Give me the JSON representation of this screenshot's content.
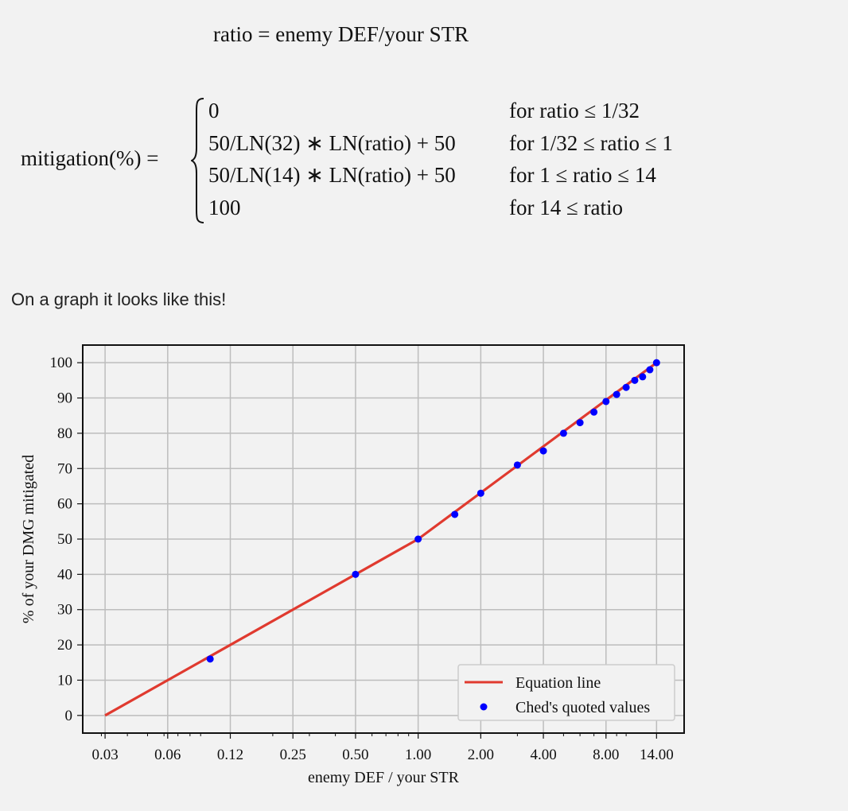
{
  "equations": {
    "ratio": "ratio = enemy DEF/your STR",
    "mitigation_lhs": "mitigation(%) =",
    "cases": [
      {
        "expr": "0",
        "cond": "for ratio ≤ 1/32"
      },
      {
        "expr": "50/LN(32) ∗ LN(ratio) + 50",
        "cond": "for 1/32 ≤ ratio ≤ 1"
      },
      {
        "expr": "50/LN(14) ∗ LN(ratio) + 50",
        "cond": "for 1 ≤ ratio ≤ 14"
      },
      {
        "expr": "100",
        "cond": "for 14 ≤ ratio"
      }
    ]
  },
  "graph_caption": "On a graph it looks like this!",
  "chart_data": {
    "type": "line",
    "xlabel": "enemy DEF / your STR",
    "ylabel": "% of your DMG mitigated",
    "x_scale": "log",
    "xlim": [
      0.0244,
      19.0
    ],
    "ylim": [
      -5,
      105
    ],
    "grid": true,
    "legend_position": "bottom-right",
    "x_ticks": [
      {
        "value": 0.03125,
        "label": "0.03"
      },
      {
        "value": 0.0625,
        "label": "0.06"
      },
      {
        "value": 0.125,
        "label": "0.12"
      },
      {
        "value": 0.25,
        "label": "0.25"
      },
      {
        "value": 0.5,
        "label": "0.50"
      },
      {
        "value": 1,
        "label": "1.00"
      },
      {
        "value": 2,
        "label": "2.00"
      },
      {
        "value": 4,
        "label": "4.00"
      },
      {
        "value": 8,
        "label": "8.00"
      },
      {
        "value": 14,
        "label": "14.00"
      }
    ],
    "y_ticks": [
      0,
      10,
      20,
      30,
      40,
      50,
      60,
      70,
      80,
      90,
      100
    ],
    "series": [
      {
        "name": "Equation line",
        "kind": "line",
        "color": "#e03a2f",
        "x": [
          0.03125,
          1,
          14
        ],
        "y": [
          0,
          50,
          100
        ]
      },
      {
        "name": "Ched's quoted values",
        "kind": "scatter",
        "color": "#0000ff",
        "x": [
          0.1,
          0.5,
          1,
          1.5,
          2,
          3,
          4,
          5,
          6,
          7,
          8,
          9,
          10,
          11,
          12,
          13,
          14
        ],
        "y": [
          16,
          40,
          50,
          57,
          63,
          71,
          75,
          80,
          83,
          86,
          89,
          91,
          93,
          95,
          96,
          98,
          100
        ]
      }
    ]
  }
}
